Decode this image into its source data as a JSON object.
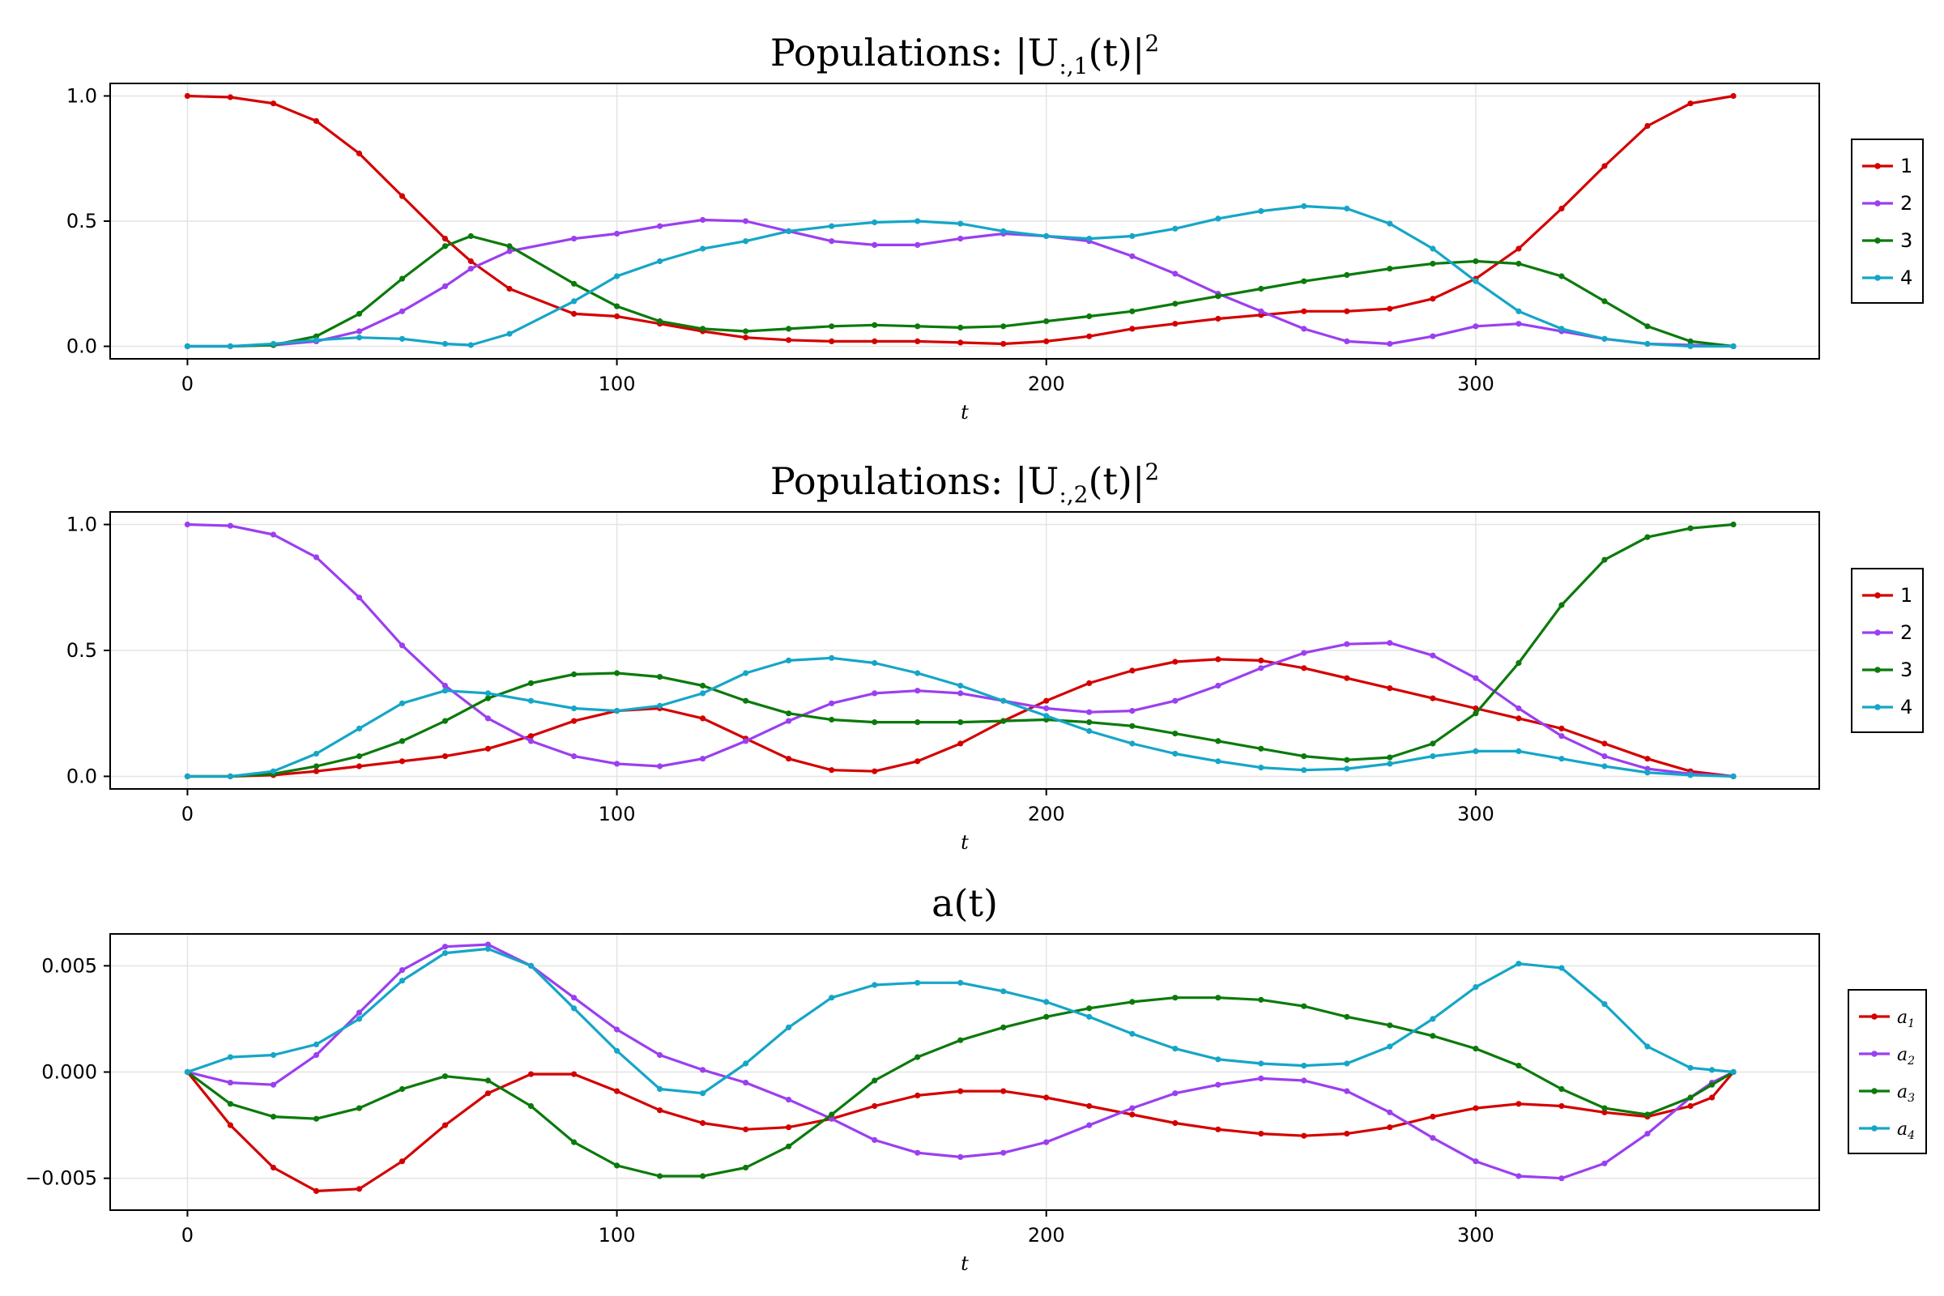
{
  "chart_data": [
    {
      "type": "line",
      "title": "Populations: |U_{:,1}(t)|²",
      "title_parts": {
        "main": "Populations: |U",
        "sub": ":,1",
        "tail": "(t)|",
        "sup": "2"
      },
      "xlabel": "t",
      "ylabel": "",
      "xlim": [
        -18,
        380
      ],
      "ylim": [
        -0.05,
        1.05
      ],
      "xticks": [
        0,
        100,
        200,
        300
      ],
      "yticks": [
        0.0,
        0.5,
        1.0
      ],
      "xtick_labels": [
        "0",
        "100",
        "200",
        "300"
      ],
      "ytick_labels": [
        "0.0",
        "0.5",
        "1.0"
      ],
      "grid": true,
      "legend_position": "right",
      "x": [
        0,
        10,
        20,
        30,
        40,
        50,
        60,
        66,
        75,
        90,
        100,
        110,
        120,
        130,
        140,
        150,
        160,
        170,
        180,
        190,
        200,
        210,
        220,
        230,
        240,
        250,
        260,
        270,
        280,
        290,
        300,
        310,
        320,
        330,
        340,
        350,
        360
      ],
      "series": [
        {
          "name": "1",
          "color": "#d40000",
          "values": [
            1.0,
            0.995,
            0.97,
            0.9,
            0.77,
            0.6,
            0.43,
            0.34,
            0.23,
            0.13,
            0.12,
            0.09,
            0.06,
            0.035,
            0.025,
            0.02,
            0.02,
            0.02,
            0.015,
            0.01,
            0.02,
            0.04,
            0.07,
            0.09,
            0.11,
            0.125,
            0.14,
            0.14,
            0.15,
            0.19,
            0.27,
            0.39,
            0.55,
            0.72,
            0.88,
            0.97,
            1.0
          ]
        },
        {
          "name": "2",
          "color": "#9b3ff0",
          "values": [
            0.0,
            0.0,
            0.005,
            0.02,
            0.06,
            0.14,
            0.24,
            0.31,
            0.38,
            0.43,
            0.45,
            0.48,
            0.505,
            0.5,
            0.46,
            0.42,
            0.405,
            0.405,
            0.43,
            0.45,
            0.44,
            0.42,
            0.36,
            0.29,
            0.21,
            0.14,
            0.07,
            0.02,
            0.01,
            0.04,
            0.08,
            0.09,
            0.06,
            0.03,
            0.01,
            0.005,
            0.0
          ]
        },
        {
          "name": "3",
          "color": "#0b7a0b",
          "values": [
            0.0,
            0.0,
            0.005,
            0.04,
            0.13,
            0.27,
            0.4,
            0.44,
            0.4,
            0.25,
            0.16,
            0.1,
            0.07,
            0.06,
            0.07,
            0.08,
            0.085,
            0.08,
            0.075,
            0.08,
            0.1,
            0.12,
            0.14,
            0.17,
            0.2,
            0.23,
            0.26,
            0.285,
            0.31,
            0.33,
            0.34,
            0.33,
            0.28,
            0.18,
            0.08,
            0.02,
            0.0
          ]
        },
        {
          "name": "4",
          "color": "#15a6c7",
          "values": [
            0.0,
            0.0,
            0.01,
            0.025,
            0.035,
            0.03,
            0.01,
            0.005,
            0.05,
            0.18,
            0.28,
            0.34,
            0.39,
            0.42,
            0.46,
            0.48,
            0.495,
            0.5,
            0.49,
            0.46,
            0.44,
            0.43,
            0.44,
            0.47,
            0.51,
            0.54,
            0.56,
            0.55,
            0.49,
            0.39,
            0.26,
            0.14,
            0.07,
            0.03,
            0.01,
            0.0,
            0.0
          ]
        }
      ]
    },
    {
      "type": "line",
      "title": "Populations: |U_{:,2}(t)|²",
      "title_parts": {
        "main": "Populations: |U",
        "sub": ":,2",
        "tail": "(t)|",
        "sup": "2"
      },
      "xlabel": "t",
      "ylabel": "",
      "xlim": [
        -18,
        380
      ],
      "ylim": [
        -0.05,
        1.05
      ],
      "xticks": [
        0,
        100,
        200,
        300
      ],
      "yticks": [
        0.0,
        0.5,
        1.0
      ],
      "xtick_labels": [
        "0",
        "100",
        "200",
        "300"
      ],
      "ytick_labels": [
        "0.0",
        "0.5",
        "1.0"
      ],
      "grid": true,
      "legend_position": "right",
      "x": [
        0,
        10,
        20,
        30,
        40,
        50,
        60,
        70,
        80,
        90,
        100,
        110,
        120,
        130,
        140,
        150,
        160,
        170,
        180,
        190,
        200,
        210,
        220,
        230,
        240,
        250,
        260,
        270,
        280,
        290,
        300,
        310,
        320,
        330,
        340,
        350,
        360
      ],
      "series": [
        {
          "name": "1",
          "color": "#d40000",
          "values": [
            0.0,
            0.0,
            0.005,
            0.02,
            0.04,
            0.06,
            0.08,
            0.11,
            0.16,
            0.22,
            0.26,
            0.27,
            0.23,
            0.15,
            0.07,
            0.025,
            0.02,
            0.06,
            0.13,
            0.22,
            0.3,
            0.37,
            0.42,
            0.455,
            0.465,
            0.46,
            0.43,
            0.39,
            0.35,
            0.31,
            0.27,
            0.23,
            0.19,
            0.13,
            0.07,
            0.02,
            0.0
          ]
        },
        {
          "name": "2",
          "color": "#9b3ff0",
          "values": [
            1.0,
            0.995,
            0.96,
            0.87,
            0.71,
            0.52,
            0.36,
            0.23,
            0.14,
            0.08,
            0.05,
            0.04,
            0.07,
            0.14,
            0.22,
            0.29,
            0.33,
            0.34,
            0.33,
            0.3,
            0.27,
            0.255,
            0.26,
            0.3,
            0.36,
            0.43,
            0.49,
            0.525,
            0.53,
            0.48,
            0.39,
            0.27,
            0.16,
            0.08,
            0.03,
            0.01,
            0.0
          ]
        },
        {
          "name": "3",
          "color": "#0b7a0b",
          "values": [
            0.0,
            0.0,
            0.01,
            0.04,
            0.08,
            0.14,
            0.22,
            0.31,
            0.37,
            0.405,
            0.41,
            0.395,
            0.36,
            0.3,
            0.25,
            0.225,
            0.215,
            0.215,
            0.215,
            0.22,
            0.225,
            0.215,
            0.2,
            0.17,
            0.14,
            0.11,
            0.08,
            0.065,
            0.075,
            0.13,
            0.25,
            0.45,
            0.68,
            0.86,
            0.95,
            0.985,
            1.0
          ]
        },
        {
          "name": "4",
          "color": "#15a6c7",
          "values": [
            0.0,
            0.0,
            0.02,
            0.09,
            0.19,
            0.29,
            0.34,
            0.33,
            0.3,
            0.27,
            0.26,
            0.28,
            0.33,
            0.41,
            0.46,
            0.47,
            0.45,
            0.41,
            0.36,
            0.3,
            0.24,
            0.18,
            0.13,
            0.09,
            0.06,
            0.035,
            0.025,
            0.03,
            0.05,
            0.08,
            0.1,
            0.1,
            0.07,
            0.04,
            0.015,
            0.005,
            0.0
          ]
        }
      ]
    },
    {
      "type": "line",
      "title": "a(t)",
      "title_parts": {
        "main": "a(t)",
        "sub": "",
        "tail": "",
        "sup": ""
      },
      "xlabel": "t",
      "ylabel": "",
      "xlim": [
        -18,
        380
      ],
      "ylim": [
        -0.0065,
        0.0065
      ],
      "xticks": [
        0,
        100,
        200,
        300
      ],
      "yticks": [
        -0.005,
        0.0,
        0.005
      ],
      "xtick_labels": [
        "0",
        "100",
        "200",
        "300"
      ],
      "ytick_labels": [
        "−0.005",
        "0.000",
        "0.005"
      ],
      "grid": true,
      "legend_position": "right",
      "legend_subscripts": true,
      "x": [
        0,
        10,
        20,
        30,
        40,
        50,
        60,
        70,
        80,
        90,
        100,
        110,
        120,
        130,
        140,
        150,
        160,
        170,
        180,
        190,
        200,
        210,
        220,
        230,
        240,
        250,
        260,
        270,
        280,
        290,
        300,
        310,
        320,
        330,
        340,
        350,
        355,
        360
      ],
      "series": [
        {
          "name": "a",
          "sub": "1",
          "color": "#d40000",
          "values": [
            0.0,
            -0.0025,
            -0.0045,
            -0.0056,
            -0.0055,
            -0.0042,
            -0.0025,
            -0.001,
            -0.0001,
            -0.0001,
            -0.0009,
            -0.0018,
            -0.0024,
            -0.0027,
            -0.0026,
            -0.0022,
            -0.0016,
            -0.0011,
            -0.0009,
            -0.0009,
            -0.0012,
            -0.0016,
            -0.002,
            -0.0024,
            -0.0027,
            -0.0029,
            -0.003,
            -0.0029,
            -0.0026,
            -0.0021,
            -0.0017,
            -0.0015,
            -0.0016,
            -0.0019,
            -0.0021,
            -0.0016,
            -0.0012,
            0.0
          ]
        },
        {
          "name": "a",
          "sub": "2",
          "color": "#9b3ff0",
          "values": [
            0.0,
            -0.0005,
            -0.0006,
            0.0008,
            0.0028,
            0.0048,
            0.0059,
            0.006,
            0.005,
            0.0035,
            0.002,
            0.0008,
            0.0001,
            -0.0005,
            -0.0013,
            -0.0022,
            -0.0032,
            -0.0038,
            -0.004,
            -0.0038,
            -0.0033,
            -0.0025,
            -0.0017,
            -0.001,
            -0.0006,
            -0.0003,
            -0.0004,
            -0.0009,
            -0.0019,
            -0.0031,
            -0.0042,
            -0.0049,
            -0.005,
            -0.0043,
            -0.0029,
            -0.0012,
            -0.0005,
            0.0
          ]
        },
        {
          "name": "a",
          "sub": "3",
          "color": "#0b7a0b",
          "values": [
            0.0,
            -0.0015,
            -0.0021,
            -0.0022,
            -0.0017,
            -0.0008,
            -0.0002,
            -0.0004,
            -0.0016,
            -0.0033,
            -0.0044,
            -0.0049,
            -0.0049,
            -0.0045,
            -0.0035,
            -0.002,
            -0.0004,
            0.0007,
            0.0015,
            0.0021,
            0.0026,
            0.003,
            0.0033,
            0.0035,
            0.0035,
            0.0034,
            0.0031,
            0.0026,
            0.0022,
            0.0017,
            0.0011,
            0.0003,
            -0.0008,
            -0.0017,
            -0.002,
            -0.0012,
            -0.0006,
            0.0
          ]
        },
        {
          "name": "a",
          "sub": "4",
          "color": "#15a6c7",
          "values": [
            0.0,
            0.0007,
            0.0008,
            0.0013,
            0.0025,
            0.0043,
            0.0056,
            0.0058,
            0.005,
            0.003,
            0.001,
            -0.0008,
            -0.001,
            0.0004,
            0.0021,
            0.0035,
            0.0041,
            0.0042,
            0.0042,
            0.0038,
            0.0033,
            0.0026,
            0.0018,
            0.0011,
            0.0006,
            0.0004,
            0.0003,
            0.0004,
            0.0012,
            0.0025,
            0.004,
            0.0051,
            0.0049,
            0.0032,
            0.0012,
            0.0002,
            0.0001,
            0.0
          ]
        }
      ]
    }
  ]
}
